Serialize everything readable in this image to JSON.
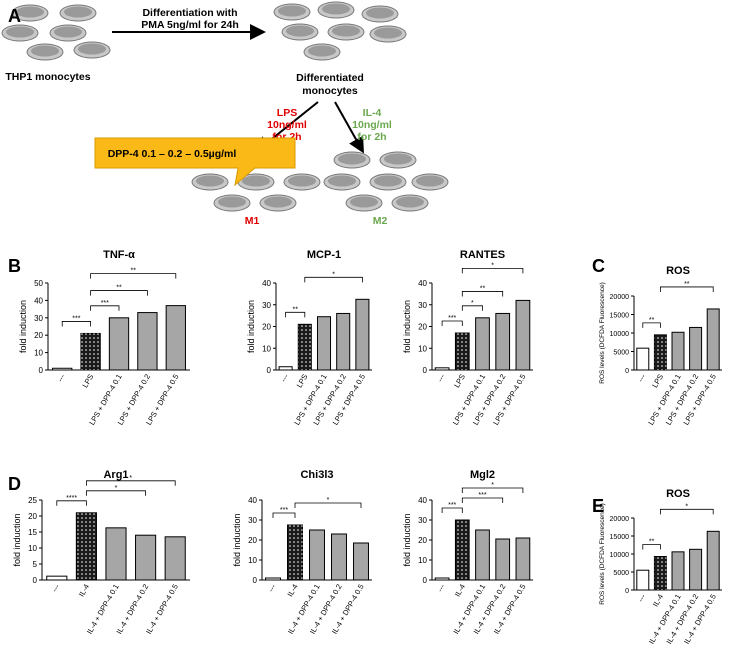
{
  "panel_labels": [
    "A",
    "B",
    "C",
    "D",
    "E"
  ],
  "diagram": {
    "step1_line1": "Differentiation with",
    "step1_line2": "PMA 5ng/ml for 24h",
    "start_label": "THP1 monocytes",
    "diff_line1": "Differentiated",
    "diff_line2": "monocytes",
    "lps_line1": "LPS",
    "lps_line2": "10ng/ml",
    "lps_line3": "for 2h",
    "il4_line1": "IL-4",
    "il4_line2": "10ng/ml",
    "il4_line3": "for 2h",
    "callout": "DPP-4 0.1 – 0.2 – 0.5µg/ml",
    "m1": "M1",
    "m2": "M2"
  },
  "chart_data": [
    {
      "type": "bar",
      "title": "TNF-α",
      "ylabel": "fold induction",
      "categories": [
        "---",
        "LPS",
        "LPS + DPP-4 0.1",
        "LPS + DPP-4 0.2",
        "LPS + DPP-4 0.5"
      ],
      "values": [
        1,
        21,
        30,
        33,
        37
      ],
      "colors": [
        "#ffffff",
        "#1a1a1a",
        "#a6a6a6",
        "#a6a6a6",
        "#a6a6a6"
      ],
      "ylim": [
        0,
        50
      ],
      "yticks": [
        0,
        10,
        20,
        30,
        40,
        50
      ],
      "annotations": [
        "***",
        "***",
        "**",
        "**"
      ]
    },
    {
      "type": "bar",
      "title": "MCP-1",
      "ylabel": "fold induction",
      "categories": [
        "---",
        "LPS",
        "LPS + DPP-4 0.1",
        "LPS + DPP-4 0.2",
        "LPS + DPP-4 0.5"
      ],
      "values": [
        1.5,
        21,
        24.5,
        26,
        32.5
      ],
      "colors": [
        "#ffffff",
        "#1a1a1a",
        "#a6a6a6",
        "#a6a6a6",
        "#a6a6a6"
      ],
      "ylim": [
        0,
        40
      ],
      "yticks": [
        0,
        10,
        20,
        30,
        40
      ],
      "annotations": [
        "**",
        "*"
      ]
    },
    {
      "type": "bar",
      "title": "RANTES",
      "ylabel": "fold induction",
      "categories": [
        "---",
        "LPS",
        "LPS + DPP-4 0.1",
        "LPS + DPP-4 0.2",
        "LPS + DPP-4 0.5"
      ],
      "values": [
        1,
        17,
        24,
        26,
        32
      ],
      "colors": [
        "#ffffff",
        "#1a1a1a",
        "#a6a6a6",
        "#a6a6a6",
        "#a6a6a6"
      ],
      "ylim": [
        0,
        40
      ],
      "yticks": [
        0,
        10,
        20,
        30,
        40
      ],
      "annotations": [
        "***",
        "*",
        "**",
        "*"
      ]
    },
    {
      "type": "bar",
      "title": "ROS",
      "ylabel": "ROS levels (DCFDA Fluorescence)",
      "categories": [
        "---",
        "LPS",
        "LPS + DPP-4 0.1",
        "LPS + DPP-4 0.2",
        "LPS + DPP-4 0.5"
      ],
      "values": [
        5900,
        9500,
        10200,
        11500,
        16500
      ],
      "colors": [
        "#ffffff",
        "#1a1a1a",
        "#a6a6a6",
        "#a6a6a6",
        "#a6a6a6"
      ],
      "ylim": [
        0,
        20000
      ],
      "yticks": [
        0,
        5000,
        10000,
        15000,
        20000
      ],
      "annotations": [
        "**",
        "**"
      ]
    },
    {
      "type": "bar",
      "title": "Arg1",
      "ylabel": "fold induction",
      "categories": [
        "---",
        "IL-4",
        "IL-4 + DPP-4 0.1",
        "IL-4 + DPP-4 0.2",
        "IL-4 + DPP-4 0.5"
      ],
      "values": [
        1.2,
        21,
        16.3,
        14,
        13.5
      ],
      "colors": [
        "#ffffff",
        "#1a1a1a",
        "#a6a6a6",
        "#a6a6a6",
        "#a6a6a6"
      ],
      "ylim": [
        0,
        25
      ],
      "yticks": [
        0,
        5,
        10,
        15,
        20,
        25
      ],
      "annotations": [
        "****",
        "*",
        "*"
      ]
    },
    {
      "type": "bar",
      "title": "Chi3l3",
      "ylabel": "fold induction",
      "categories": [
        "---",
        "IL-4",
        "IL-4 + DPP-4 0.1",
        "IL-4 + DPP-4 0.2",
        "IL-4 + DPP-4 0.5"
      ],
      "values": [
        1,
        27.5,
        25,
        23,
        18.5
      ],
      "colors": [
        "#ffffff",
        "#1a1a1a",
        "#a6a6a6",
        "#a6a6a6",
        "#a6a6a6"
      ],
      "ylim": [
        0,
        40
      ],
      "yticks": [
        0,
        10,
        20,
        30,
        40
      ],
      "annotations": [
        "***",
        "*"
      ]
    },
    {
      "type": "bar",
      "title": "Mgl2",
      "ylabel": "fold induction",
      "categories": [
        "---",
        "IL-4",
        "IL-4 + DPP-4 0.1",
        "IL-4 + DPP-4 0.2",
        "IL-4 + DPP-4 0.5"
      ],
      "values": [
        1,
        30,
        25,
        20.5,
        21
      ],
      "colors": [
        "#ffffff",
        "#1a1a1a",
        "#a6a6a6",
        "#a6a6a6",
        "#a6a6a6"
      ],
      "ylim": [
        0,
        40
      ],
      "yticks": [
        0,
        10,
        20,
        30,
        40
      ],
      "annotations": [
        "***",
        "***",
        "*"
      ]
    },
    {
      "type": "bar",
      "title": "ROS",
      "ylabel": "ROS levels (DCFDA Fluorescence)",
      "categories": [
        "---",
        "IL-4",
        "IL-4 + DPP-4 0.1",
        "IL-4 + DPP-4 0.2",
        "IL-4 + DPP-4 0.5"
      ],
      "values": [
        5500,
        9300,
        10600,
        11300,
        16300
      ],
      "colors": [
        "#ffffff",
        "#1a1a1a",
        "#a6a6a6",
        "#a6a6a6",
        "#a6a6a6"
      ],
      "ylim": [
        0,
        20000
      ],
      "yticks": [
        0,
        5000,
        10000,
        15000,
        20000
      ],
      "annotations": [
        "**",
        "*"
      ]
    }
  ]
}
